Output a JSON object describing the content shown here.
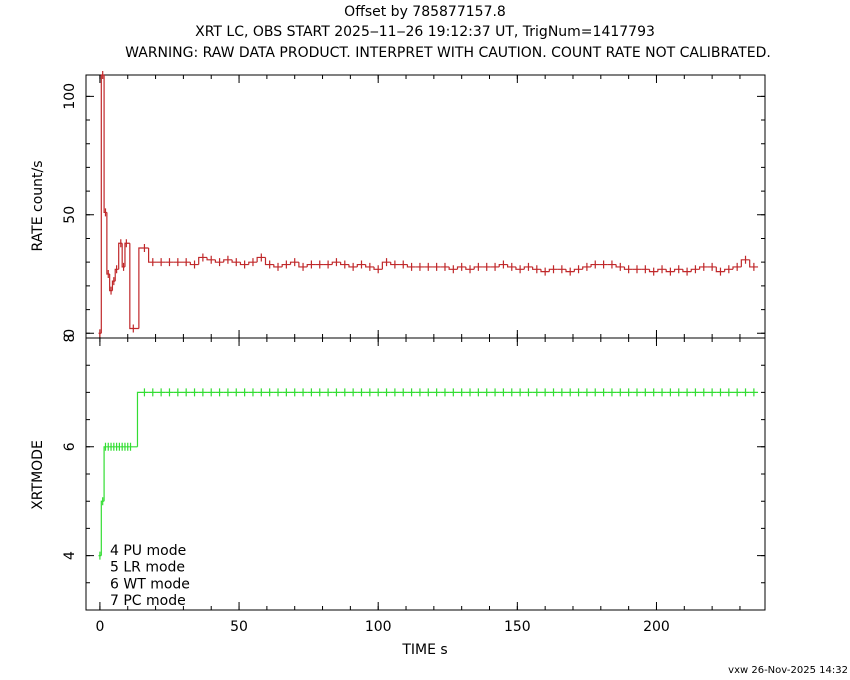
{
  "chart_data": [
    {
      "type": "step",
      "title": "Offset by 785877157.8",
      "subtitle": "XRT LC, OBS START 2025‒11‒26 19:12:37 UT, TrigNum=1417793",
      "warning": "WARNING: RAW DATA PRODUCT. INTERPRET WITH CAUTION. COUNT RATE NOT CALIBRATED.",
      "y_label": "RATE  count/s",
      "color": "#c0282a",
      "xlim": [
        -5,
        239
      ],
      "xticks": [
        0,
        50,
        100,
        150,
        200
      ],
      "ylim": [
        -2,
        109
      ],
      "yticks": [
        0,
        50,
        100
      ],
      "x": [
        0,
        1,
        2,
        3,
        4,
        5,
        6,
        7.5,
        8.5,
        9.5,
        12,
        16,
        19,
        22,
        25,
        28,
        31,
        34,
        37,
        40,
        43,
        46,
        49,
        52,
        55,
        58,
        61,
        64,
        67,
        70,
        73,
        76,
        79,
        82,
        85,
        88,
        91,
        94,
        97,
        100,
        103,
        106,
        109,
        112,
        115,
        118,
        121,
        124,
        127,
        130,
        133,
        136,
        139,
        142,
        145,
        148,
        151,
        154,
        157,
        160,
        163,
        166,
        169,
        172,
        175,
        178,
        181,
        184,
        187,
        190,
        193,
        196,
        199,
        202,
        205,
        208,
        211,
        214,
        217,
        220,
        223,
        226,
        229,
        232,
        235
      ],
      "values": [
        0,
        109,
        51,
        25,
        18,
        22,
        27,
        38,
        28,
        38,
        2,
        36,
        30,
        30,
        30,
        30,
        30,
        29,
        32,
        31,
        30,
        31,
        30,
        29,
        30,
        32,
        29,
        28,
        29,
        30,
        28,
        29,
        29,
        29,
        30,
        29,
        28,
        29,
        28,
        27,
        30,
        29,
        29,
        28,
        28,
        28,
        28,
        28,
        27,
        28,
        27,
        28,
        28,
        28,
        29,
        28,
        27,
        28,
        27,
        26,
        27,
        27,
        26,
        27,
        28,
        29,
        29,
        29,
        28,
        27,
        27,
        27,
        26,
        27,
        26,
        27,
        26,
        27,
        28,
        28,
        26,
        27,
        28,
        31,
        28
      ]
    },
    {
      "type": "step",
      "y_label": "XRTMODE",
      "x_label": "TIME  s",
      "color": "#33dd33",
      "xlim": [
        -5,
        239
      ],
      "xticks": [
        0,
        50,
        100,
        150,
        200
      ],
      "ylim": [
        3,
        8
      ],
      "yticks": [
        4,
        6,
        8
      ],
      "legend": [
        "4 PU mode",
        "5 LR mode",
        "6 WT mode",
        "7 PC mode"
      ],
      "x": [
        0,
        1,
        2,
        3,
        4,
        5,
        6,
        7,
        8,
        9,
        10,
        11,
        16,
        19,
        22,
        25,
        28,
        31,
        34,
        37,
        40,
        43,
        46,
        49,
        52,
        55,
        58,
        61,
        64,
        67,
        70,
        73,
        76,
        79,
        82,
        85,
        88,
        91,
        94,
        97,
        100,
        103,
        106,
        109,
        112,
        115,
        118,
        121,
        124,
        127,
        130,
        133,
        136,
        139,
        142,
        145,
        148,
        151,
        154,
        157,
        160,
        163,
        166,
        169,
        172,
        175,
        178,
        181,
        184,
        187,
        190,
        193,
        196,
        199,
        202,
        205,
        208,
        211,
        214,
        217,
        220,
        223,
        226,
        229,
        232,
        235
      ],
      "values": [
        4,
        5,
        6,
        6,
        6,
        6,
        6,
        6,
        6,
        6,
        6,
        6,
        7,
        7,
        7,
        7,
        7,
        7,
        7,
        7,
        7,
        7,
        7,
        7,
        7,
        7,
        7,
        7,
        7,
        7,
        7,
        7,
        7,
        7,
        7,
        7,
        7,
        7,
        7,
        7,
        7,
        7,
        7,
        7,
        7,
        7,
        7,
        7,
        7,
        7,
        7,
        7,
        7,
        7,
        7,
        7,
        7,
        7,
        7,
        7,
        7,
        7,
        7,
        7,
        7,
        7,
        7,
        7,
        7,
        7,
        7,
        7,
        7,
        7,
        7,
        7,
        7,
        7,
        7,
        7,
        7,
        7,
        7,
        7,
        7,
        7
      ]
    }
  ],
  "footer": "vxw 26-Nov-2025 14:32"
}
